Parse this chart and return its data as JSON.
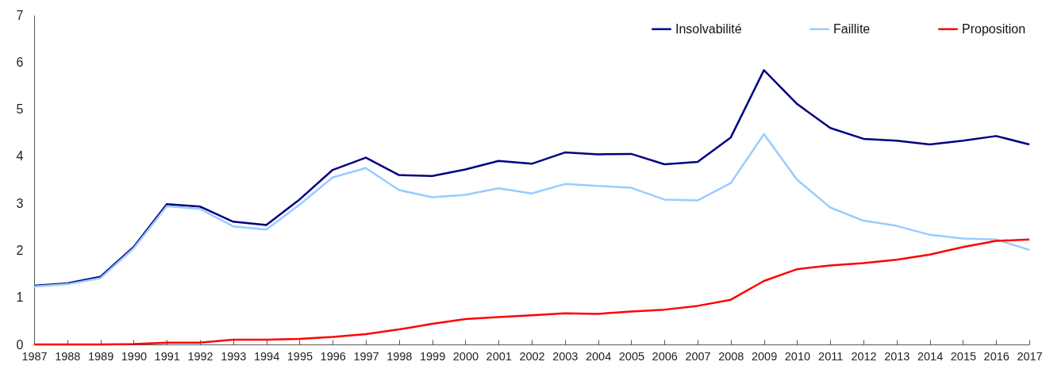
{
  "chart_data": {
    "type": "line",
    "categories": [
      "1987",
      "1988",
      "1989",
      "1990",
      "1991",
      "1992",
      "1993",
      "1994",
      "1995",
      "1996",
      "1997",
      "1998",
      "1999",
      "2000",
      "2001",
      "2002",
      "2003",
      "2004",
      "2005",
      "2006",
      "2007",
      "2008",
      "2009",
      "2010",
      "2011",
      "2012",
      "2013",
      "2014",
      "2015",
      "2016",
      "2017"
    ],
    "series": [
      {
        "name": "Insolvabilité",
        "color": "#000080",
        "values": [
          1.25,
          1.3,
          1.44,
          2.07,
          2.98,
          2.93,
          2.61,
          2.54,
          3.08,
          3.71,
          3.97,
          3.6,
          3.58,
          3.72,
          3.9,
          3.84,
          4.08,
          4.04,
          4.05,
          3.83,
          3.88,
          4.4,
          5.83,
          5.11,
          4.6,
          4.37,
          4.33,
          4.25,
          4.33,
          4.43,
          4.25
        ]
      },
      {
        "name": "Faillite",
        "color": "#99ccff",
        "values": [
          1.23,
          1.28,
          1.41,
          2.04,
          2.94,
          2.88,
          2.51,
          2.44,
          2.97,
          3.55,
          3.75,
          3.28,
          3.13,
          3.18,
          3.32,
          3.21,
          3.41,
          3.37,
          3.33,
          3.08,
          3.06,
          3.43,
          4.47,
          3.5,
          2.91,
          2.63,
          2.52,
          2.33,
          2.25,
          2.23,
          2.01
        ]
      },
      {
        "name": "Proposition",
        "color": "#ff0000",
        "values": [
          0,
          0,
          0,
          0.01,
          0.04,
          0.04,
          0.1,
          0.1,
          0.12,
          0.16,
          0.22,
          0.32,
          0.44,
          0.54,
          0.58,
          0.62,
          0.66,
          0.65,
          0.7,
          0.74,
          0.82,
          0.95,
          1.35,
          1.6,
          1.68,
          1.73,
          1.8,
          1.91,
          2.07,
          2.2,
          2.23
        ]
      }
    ],
    "ylim": [
      0,
      7
    ],
    "yticks": [
      0,
      1,
      2,
      3,
      4,
      5,
      6,
      7
    ],
    "grid": false,
    "legend": "top right",
    "line_style": "solid",
    "marker": "none"
  }
}
